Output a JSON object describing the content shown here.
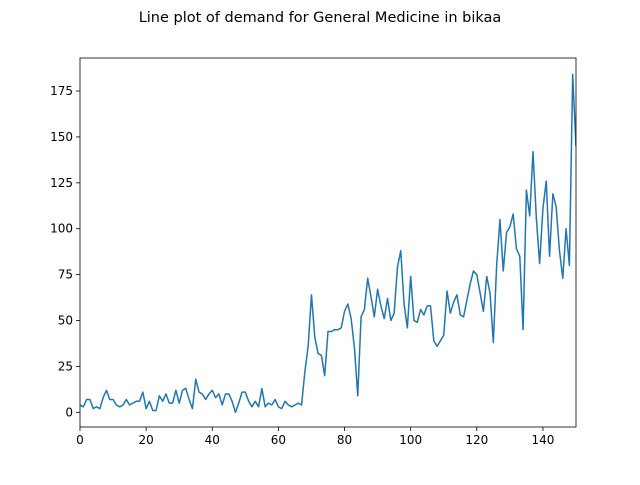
{
  "chart_data": {
    "type": "line",
    "title": "Line plot of demand for General Medicine in bikaa",
    "xlabel": "",
    "ylabel": "",
    "xlim": [
      0,
      150
    ],
    "ylim": [
      -8,
      193
    ],
    "x_ticks": [
      0,
      20,
      40,
      60,
      80,
      100,
      120,
      140
    ],
    "y_ticks": [
      0,
      25,
      50,
      75,
      100,
      125,
      150,
      175
    ],
    "grid": false,
    "legend": "none",
    "line_color": "#1f77b4",
    "series": [
      {
        "values": [
          4,
          3,
          7,
          7,
          2,
          3,
          2,
          8,
          12,
          7,
          7,
          4,
          3,
          4,
          7,
          4,
          5,
          6,
          6,
          11,
          2,
          6,
          1,
          1,
          9,
          6,
          10,
          5,
          5,
          12,
          5,
          12,
          13,
          7,
          2,
          18,
          11,
          10,
          7,
          10,
          12,
          8,
          10,
          4,
          10,
          10,
          6,
          0,
          5,
          11,
          11,
          6,
          3,
          6,
          3,
          13,
          3,
          5,
          4,
          7,
          3,
          2,
          6,
          4,
          3,
          4,
          5,
          4,
          22,
          36,
          64,
          41,
          32,
          31,
          20,
          44,
          44,
          45,
          45,
          46,
          55,
          59,
          51,
          35,
          9,
          52,
          56,
          73,
          63,
          52,
          67,
          58,
          51,
          62,
          50,
          54,
          79,
          88,
          59,
          46,
          74,
          50,
          49,
          56,
          53,
          58,
          58,
          39,
          36,
          39,
          42,
          66,
          54,
          60,
          64,
          53,
          52,
          61,
          70,
          77,
          75,
          65,
          55,
          74,
          65,
          38,
          80,
          105,
          77,
          98,
          101,
          108,
          89,
          85,
          45,
          121,
          107,
          142,
          106,
          81,
          111,
          126,
          85,
          119,
          112,
          88,
          73,
          100,
          80,
          184,
          145
        ]
      }
    ]
  }
}
